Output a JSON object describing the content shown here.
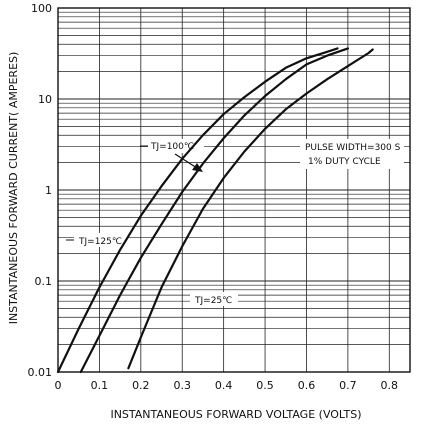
{
  "chart_data": {
    "type": "line",
    "title": "",
    "xlabel": "INSTANTANEOUS FORWARD VOLTAGE (VOLTS)",
    "ylabel": "INSTANTANEOUS FORWARD CURRENT( AMPERES)",
    "xlim": [
      0,
      0.85
    ],
    "ylim": [
      0.01,
      100
    ],
    "y_scale": "log",
    "grid": true,
    "x_ticks": [
      "0",
      "0.1",
      "0.2",
      "0.3",
      "0.4",
      "0.5",
      "0.6",
      "0.7",
      "0.8"
    ],
    "x_tick_values": [
      0,
      0.1,
      0.2,
      0.3,
      0.4,
      0.5,
      0.6,
      0.7,
      0.8
    ],
    "y_ticks": [
      "0.01",
      "0.1",
      "1",
      "10",
      "100"
    ],
    "y_tick_values": [
      0.01,
      0.1,
      1,
      10,
      100
    ],
    "series": [
      {
        "name": "TJ=125℃",
        "points": [
          [
            0.0,
            0.01
          ],
          [
            0.05,
            0.03
          ],
          [
            0.1,
            0.085
          ],
          [
            0.15,
            0.22
          ],
          [
            0.2,
            0.52
          ],
          [
            0.25,
            1.1
          ],
          [
            0.3,
            2.2
          ],
          [
            0.35,
            4.0
          ],
          [
            0.4,
            6.8
          ],
          [
            0.45,
            10.5
          ],
          [
            0.5,
            15.5
          ],
          [
            0.55,
            22
          ],
          [
            0.6,
            28
          ],
          [
            0.65,
            33
          ],
          [
            0.675,
            36
          ]
        ]
      },
      {
        "name": "TJ=100℃",
        "points": [
          [
            0.055,
            0.01
          ],
          [
            0.1,
            0.025
          ],
          [
            0.15,
            0.07
          ],
          [
            0.2,
            0.18
          ],
          [
            0.25,
            0.42
          ],
          [
            0.3,
            0.95
          ],
          [
            0.35,
            1.95
          ],
          [
            0.4,
            3.7
          ],
          [
            0.45,
            6.6
          ],
          [
            0.5,
            10.8
          ],
          [
            0.55,
            16.5
          ],
          [
            0.6,
            24
          ],
          [
            0.65,
            30
          ],
          [
            0.7,
            36
          ]
        ]
      },
      {
        "name": "TJ=25℃",
        "points": [
          [
            0.17,
            0.011
          ],
          [
            0.2,
            0.024
          ],
          [
            0.25,
            0.085
          ],
          [
            0.3,
            0.24
          ],
          [
            0.35,
            0.62
          ],
          [
            0.4,
            1.35
          ],
          [
            0.45,
            2.65
          ],
          [
            0.5,
            4.7
          ],
          [
            0.55,
            7.7
          ],
          [
            0.6,
            11.5
          ],
          [
            0.65,
            16.5
          ],
          [
            0.7,
            23
          ],
          [
            0.75,
            32
          ],
          [
            0.76,
            35
          ]
        ]
      }
    ],
    "annotations": [
      "PULSE WIDTH=300  S",
      "1% DUTY CYCLE"
    ],
    "colors": {
      "line": "#111111",
      "grid": "#222222",
      "background": "#ffffff"
    }
  }
}
